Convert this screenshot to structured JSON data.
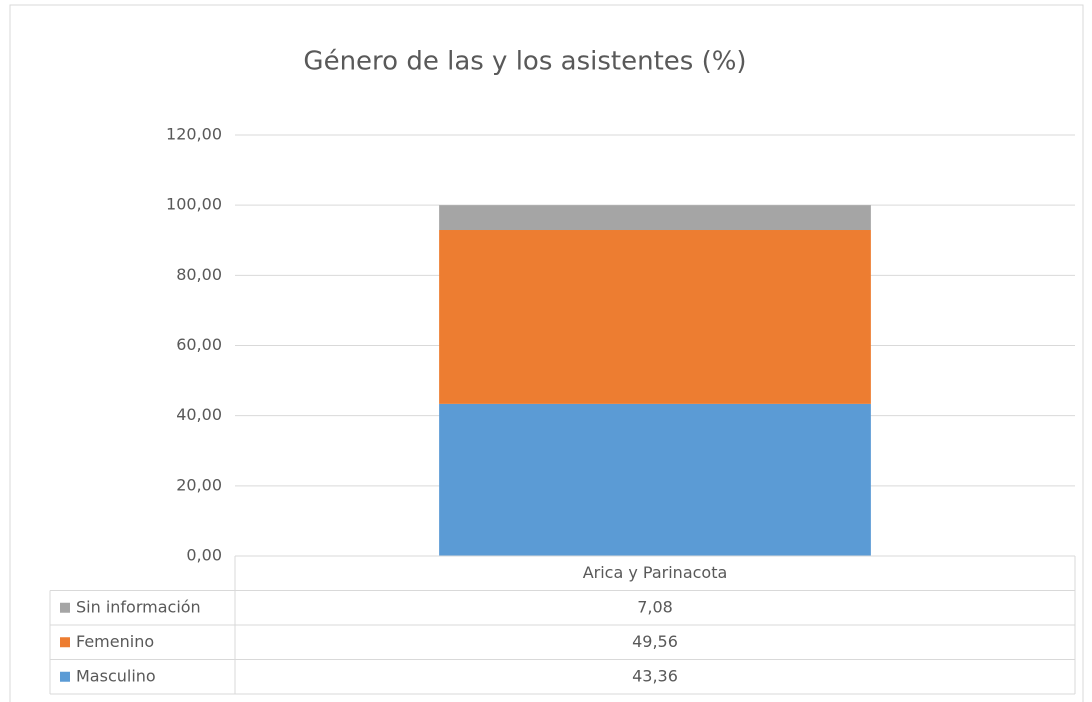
{
  "chart_data": {
    "type": "stacked_bar",
    "title": "Género de las y los asistentes (%)",
    "categories": [
      "Arica y Parinacota"
    ],
    "series": [
      {
        "name": "Masculino",
        "color": "#5b9bd5",
        "values": [
          43.36
        ],
        "value_labels": [
          "43,36"
        ]
      },
      {
        "name": "Femenino",
        "color": "#ed7d31",
        "values": [
          49.56
        ],
        "value_labels": [
          "49,56"
        ]
      },
      {
        "name": "Sin información",
        "color": "#a5a5a5",
        "values": [
          7.08
        ],
        "value_labels": [
          "7,08"
        ]
      }
    ],
    "ylim": [
      0,
      120
    ],
    "yticks": [
      {
        "value": 0,
        "label": "0,00"
      },
      {
        "value": 20,
        "label": "20,00"
      },
      {
        "value": 40,
        "label": "40,00"
      },
      {
        "value": 60,
        "label": "60,00"
      },
      {
        "value": 80,
        "label": "80,00"
      },
      {
        "value": 100,
        "label": "100,00"
      },
      {
        "value": 120,
        "label": "120,00"
      }
    ],
    "grid": true
  }
}
